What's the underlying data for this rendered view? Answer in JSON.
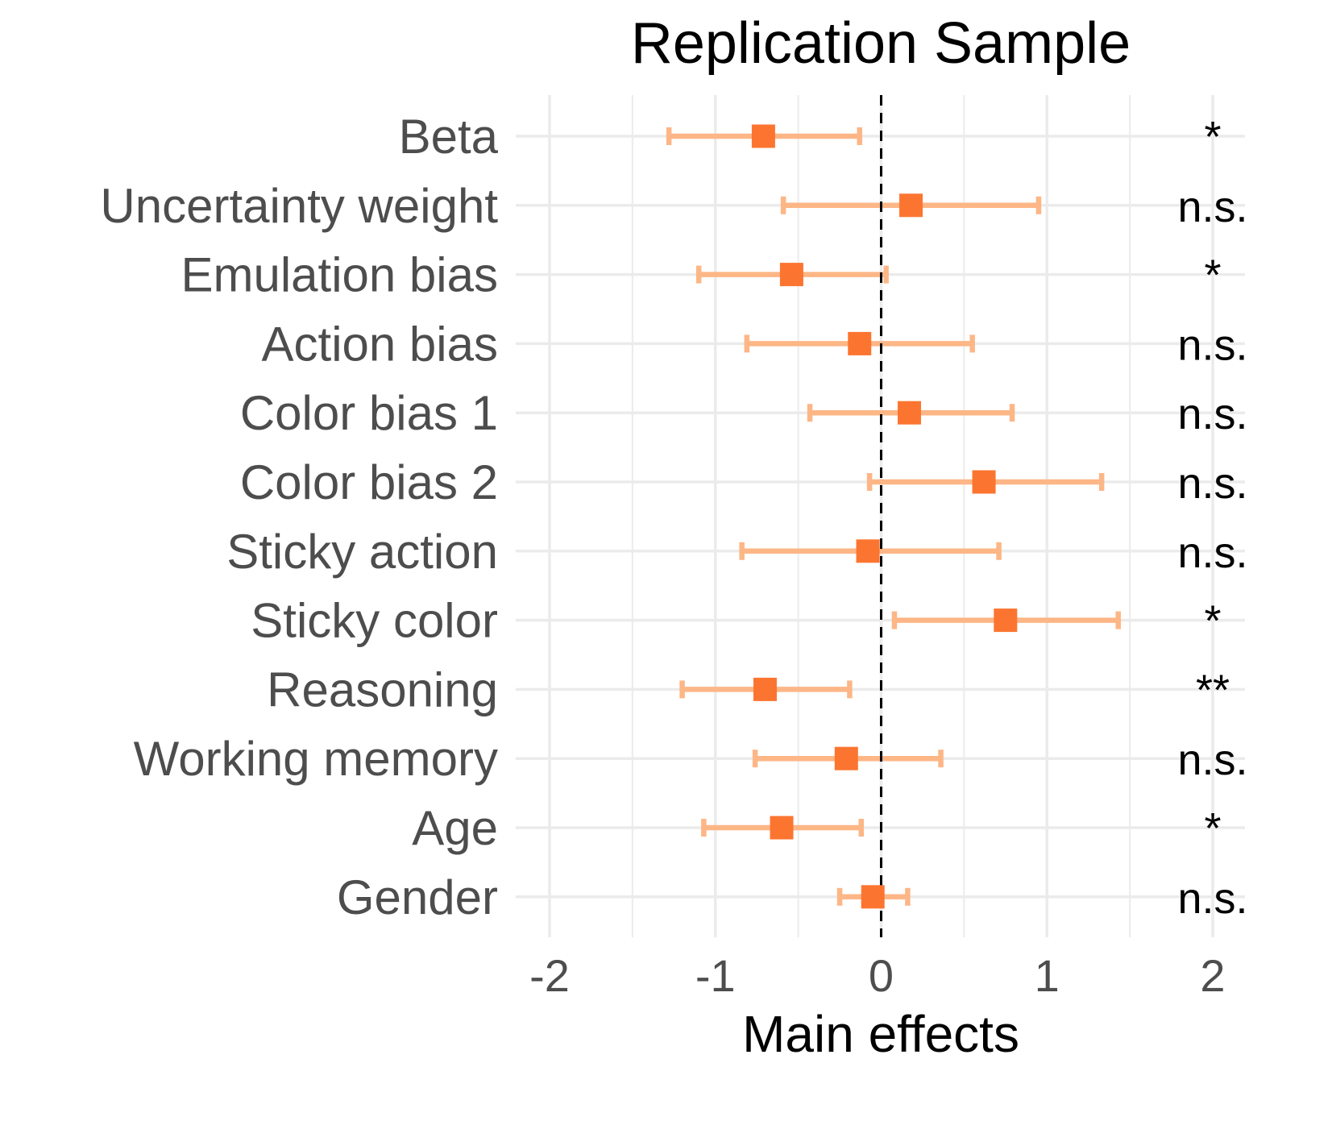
{
  "chart_data": {
    "type": "scatter",
    "subtype": "forest-plot",
    "title": "Replication Sample",
    "xlabel": "Main effects",
    "ylabel": "",
    "xlim": [
      -2,
      2
    ],
    "xticks": [
      -2,
      -1,
      0,
      1,
      2
    ],
    "xtick_labels": [
      "-2",
      "-1",
      "0",
      "1",
      "2"
    ],
    "reference_line": 0,
    "grid": true,
    "legend": "none",
    "colors": {
      "point": "#fc7530",
      "errorbar": "#fdb686",
      "grid": "#ebebeb",
      "reference": "#000000"
    },
    "categories": [
      "Beta",
      "Uncertainty weight",
      "Emulation bias",
      "Action bias",
      "Color bias 1",
      "Color bias 2",
      "Sticky action",
      "Sticky color",
      "Reasoning",
      "Working memory",
      "Age",
      "Gender"
    ],
    "estimates": [
      -0.71,
      0.18,
      -0.54,
      -0.13,
      0.17,
      0.62,
      -0.08,
      0.75,
      -0.7,
      -0.21,
      -0.6,
      -0.05
    ],
    "ci_lower": [
      -1.28,
      -0.59,
      -1.1,
      -0.81,
      -0.43,
      -0.07,
      -0.84,
      0.08,
      -1.2,
      -0.76,
      -1.07,
      -0.25
    ],
    "ci_upper": [
      -0.13,
      0.95,
      0.03,
      0.55,
      0.79,
      1.33,
      0.71,
      1.43,
      -0.19,
      0.36,
      -0.12,
      0.16
    ],
    "significance": [
      "*",
      "n.s.",
      "*",
      "n.s.",
      "n.s.",
      "n.s.",
      "n.s.",
      "*",
      "**",
      "n.s.",
      "*",
      "n.s."
    ]
  }
}
